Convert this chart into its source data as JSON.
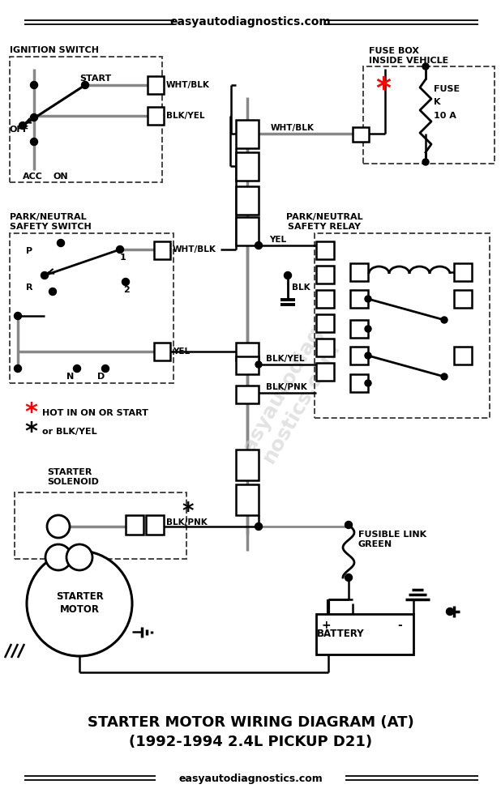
{
  "title_top": "easyautodiagnostics.com",
  "title_bottom1": "STARTER MOTOR WIRING DIAGRAM (AT)",
  "title_bottom2": "(1992-1994 2.4L PICKUP D21)",
  "title_bottom3": "easyautodiagnostics.com",
  "bg_color": "#ffffff",
  "line_color": "#000000",
  "gray_color": "#888888",
  "red_color": "#ff0000"
}
